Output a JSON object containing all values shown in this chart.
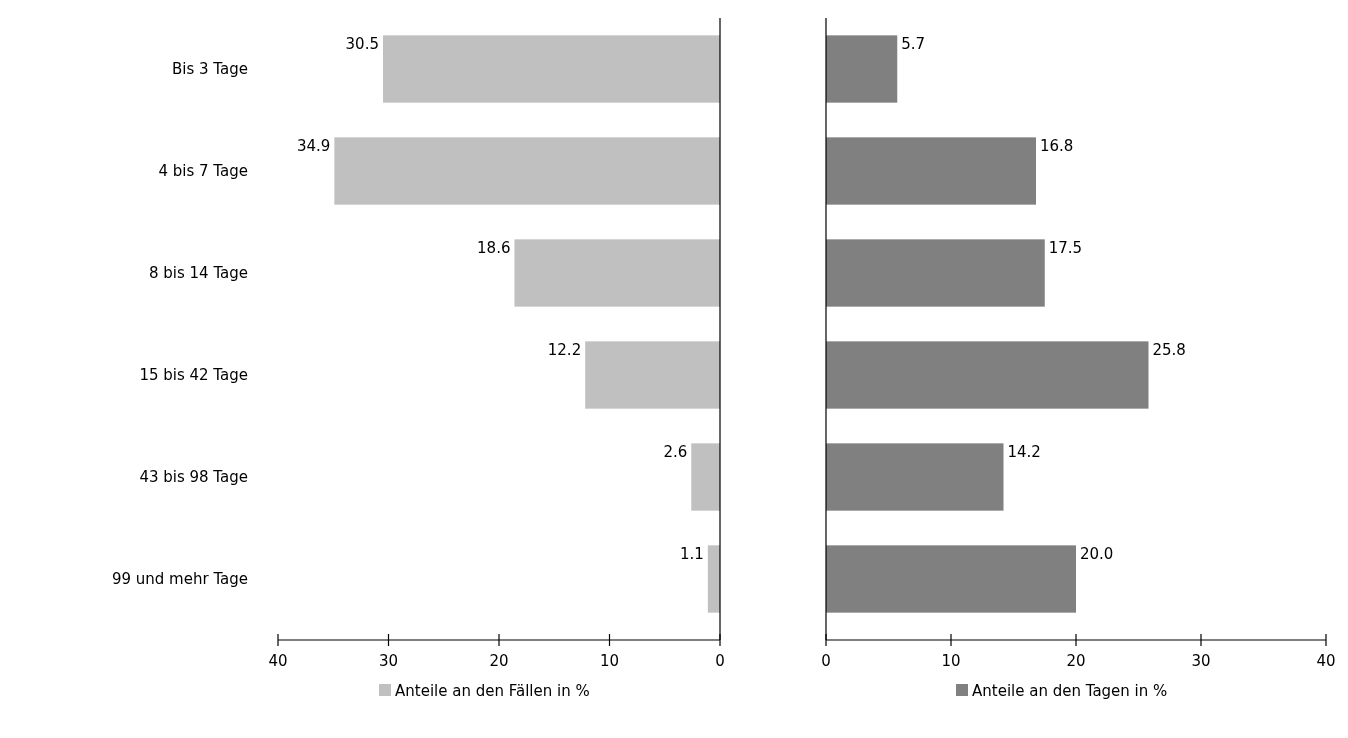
{
  "chart_data": [
    {
      "type": "bar",
      "orientation": "horizontal",
      "categories": [
        "Bis 3 Tage",
        "4 bis 7 Tage",
        "8 bis 14 Tage",
        "15 bis 42 Tage",
        "43 bis 98 Tage",
        "99 und mehr Tage"
      ],
      "series": [
        {
          "name": "Anteile an den Fällen in %",
          "color": "#c0c0c0",
          "values": [
            30.5,
            34.9,
            18.6,
            12.2,
            2.6,
            1.1
          ],
          "value_labels": [
            "30.5",
            "34.9",
            "18.6",
            "12.2",
            "2.6",
            "1.1"
          ]
        }
      ],
      "xlim": [
        40,
        0
      ],
      "xticks": [
        40,
        30,
        20,
        10,
        0
      ],
      "legend": "bottom",
      "grid": false
    },
    {
      "type": "bar",
      "orientation": "horizontal",
      "categories": [
        null,
        null,
        null,
        null,
        null,
        null
      ],
      "series": [
        {
          "name": "Anteile an den Tagen in %",
          "color": "#808080",
          "values": [
            5.7,
            16.8,
            17.5,
            25.8,
            14.2,
            20.0
          ],
          "value_labels": [
            "5.7",
            "16.8",
            "17.5",
            "25.8",
            "14.2",
            "20.0"
          ]
        }
      ],
      "xlim": [
        0,
        40
      ],
      "xticks": [
        0,
        10,
        20,
        30,
        40
      ],
      "legend": "bottom",
      "grid": false,
      "tick_labels": "x"
    }
  ]
}
